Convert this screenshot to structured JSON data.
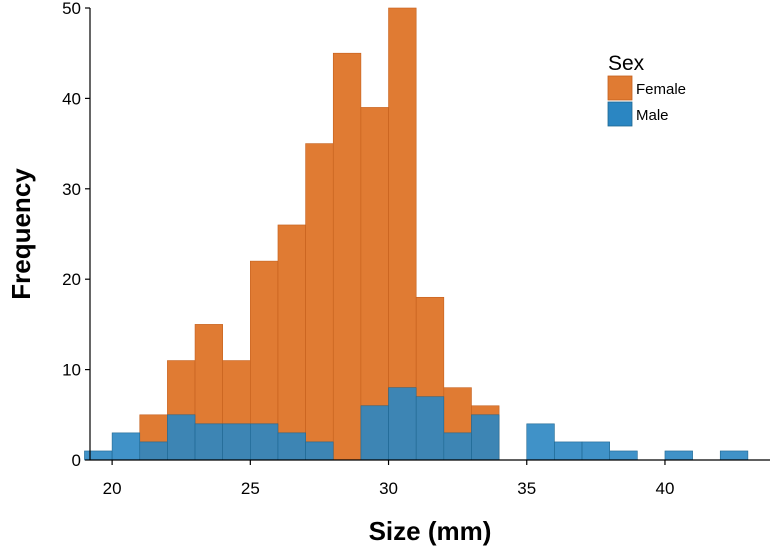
{
  "chart_data": {
    "type": "bar",
    "title": "",
    "xlabel": "Size (mm)",
    "ylabel": "Frequency",
    "xlim": [
      19.2,
      43.8
    ],
    "ylim": [
      0,
      50
    ],
    "bin_width": 1,
    "x_ticks": [
      20,
      25,
      30,
      35,
      40
    ],
    "y_ticks": [
      0,
      10,
      20,
      30,
      40,
      50
    ],
    "grid": false,
    "legend": {
      "title": "Sex",
      "placement": "top-right"
    },
    "series": [
      {
        "name": "Female",
        "color": "#e07b33",
        "bins": [
          {
            "x": 21.5,
            "y": 5
          },
          {
            "x": 22.5,
            "y": 11
          },
          {
            "x": 23.5,
            "y": 15
          },
          {
            "x": 24.5,
            "y": 11
          },
          {
            "x": 25.5,
            "y": 22
          },
          {
            "x": 26.5,
            "y": 26
          },
          {
            "x": 27.5,
            "y": 35
          },
          {
            "x": 28.5,
            "y": 45
          },
          {
            "x": 29.5,
            "y": 39
          },
          {
            "x": 30.5,
            "y": 50
          },
          {
            "x": 31.5,
            "y": 18
          },
          {
            "x": 32.5,
            "y": 8
          },
          {
            "x": 33.5,
            "y": 6
          }
        ]
      },
      {
        "name": "Male",
        "color": "#2b86c2",
        "bins": [
          {
            "x": 19.5,
            "y": 1
          },
          {
            "x": 20.5,
            "y": 3
          },
          {
            "x": 21.5,
            "y": 2
          },
          {
            "x": 22.5,
            "y": 5
          },
          {
            "x": 23.5,
            "y": 4
          },
          {
            "x": 24.5,
            "y": 4
          },
          {
            "x": 25.5,
            "y": 4
          },
          {
            "x": 26.5,
            "y": 3
          },
          {
            "x": 27.5,
            "y": 2
          },
          {
            "x": 29.5,
            "y": 6
          },
          {
            "x": 30.5,
            "y": 8
          },
          {
            "x": 31.5,
            "y": 7
          },
          {
            "x": 32.5,
            "y": 3
          },
          {
            "x": 33.5,
            "y": 5
          },
          {
            "x": 35.5,
            "y": 4
          },
          {
            "x": 36.5,
            "y": 2
          },
          {
            "x": 37.5,
            "y": 2
          },
          {
            "x": 38.5,
            "y": 1
          },
          {
            "x": 40.5,
            "y": 1
          },
          {
            "x": 42.5,
            "y": 1
          }
        ]
      }
    ]
  }
}
